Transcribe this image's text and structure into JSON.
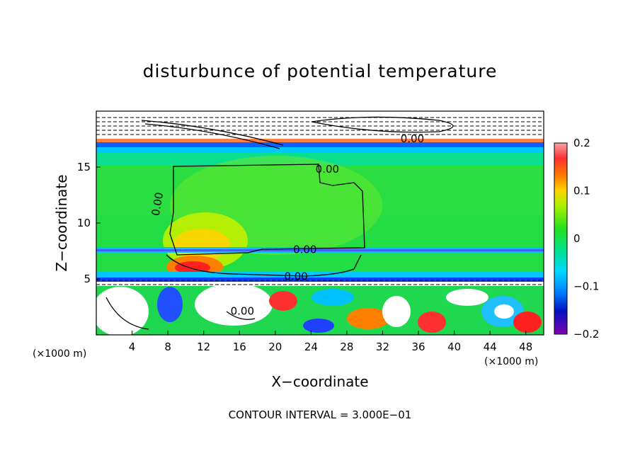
{
  "chart_data": {
    "type": "heatmap",
    "title": "disturbunce of potential temperature",
    "xlabel": "X−coordinate",
    "ylabel": "Z−coordinate",
    "x_unit": "(×1000 m)",
    "z_unit": "(×1000 m)",
    "xlim": [
      0,
      50
    ],
    "ylim": [
      0,
      20
    ],
    "x_ticks": [
      4,
      8,
      12,
      16,
      20,
      24,
      28,
      32,
      36,
      40,
      44,
      48
    ],
    "y_ticks": [
      5,
      10,
      15
    ],
    "colorbar": {
      "min": -0.2,
      "max": 0.2,
      "tick_values": [
        0.2,
        0.1,
        0,
        -0.1,
        -0.2
      ],
      "tick_labels": [
        "0.2",
        "0.1",
        "0",
        "−0.1",
        "−0.2"
      ]
    },
    "contour_labels": [
      "0.00",
      "0.00",
      "0.00",
      "0.00",
      "0.00",
      "0.00"
    ],
    "contour_interval_text": "CONTOUR INTERVAL = 3.000E−01"
  }
}
